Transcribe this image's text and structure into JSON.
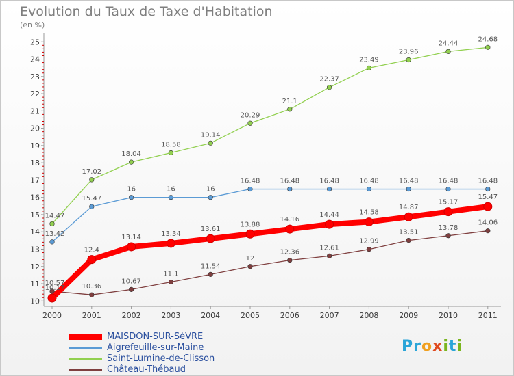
{
  "title": "Evolution du Taux de Taxe d'Habitation",
  "units": "(en %)",
  "brand": {
    "letters": [
      "P",
      "r",
      "o",
      "x",
      "i",
      "t",
      "i"
    ],
    "colors": [
      "#2aa5d8",
      "#2aa5d8",
      "#f0a020",
      "#e04a1e",
      "#7ab51d",
      "#2aa5d8",
      "#7ab51d"
    ]
  },
  "chart_data": {
    "type": "line",
    "x": [
      "2000",
      "2001",
      "2002",
      "2003",
      "2004",
      "2005",
      "2006",
      "2007",
      "2008",
      "2009",
      "2010",
      "2011"
    ],
    "ylim": [
      10,
      25
    ],
    "yticks": [
      10,
      11,
      12,
      13,
      14,
      15,
      16,
      17,
      18,
      19,
      20,
      21,
      22,
      23,
      24,
      25
    ],
    "grid": false,
    "legend_position": "bottom-left",
    "series": [
      {
        "name": "MAISDON-SUR-SèVRE",
        "color": "#ff0000",
        "values": [
          10.17,
          12.4,
          13.14,
          13.34,
          13.61,
          13.88,
          14.16,
          14.44,
          14.58,
          14.87,
          15.17,
          15.47
        ],
        "labels": [
          "10.17",
          "12.4",
          "13.14",
          "13.34",
          "13.61",
          "13.88",
          "14.16",
          "14.44",
          "14.58",
          "14.87",
          "15.17",
          "15.47"
        ]
      },
      {
        "name": "Aigrefeuille-sur-Maine",
        "color": "#5b9bd5",
        "values": [
          13.42,
          15.47,
          16,
          16,
          16,
          16.48,
          16.48,
          16.48,
          16.48,
          16.48,
          16.48,
          16.48
        ],
        "labels": [
          "13.42",
          "15.47",
          "16",
          "16",
          "16",
          "16.48",
          "16.48",
          "16.48",
          "16.48",
          "16.48",
          "16.48",
          "16.48"
        ]
      },
      {
        "name": "Saint-Lumine-de-Clisson",
        "color": "#92d050",
        "values": [
          14.47,
          17.02,
          18.04,
          18.58,
          19.14,
          20.29,
          21.1,
          22.37,
          23.49,
          23.96,
          24.44,
          24.68
        ],
        "labels": [
          "14.47",
          "17.02",
          "18.04",
          "18.58",
          "19.14",
          "20.29",
          "21.1",
          "22.37",
          "23.49",
          "23.96",
          "24.44",
          "24.68"
        ]
      },
      {
        "name": "Château-Thébaud",
        "color": "#7f3f3f",
        "values": [
          10.57,
          10.36,
          10.67,
          11.1,
          11.54,
          12,
          12.36,
          12.61,
          12.99,
          13.51,
          13.78,
          14.06
        ],
        "labels": [
          "10.57",
          "10.36",
          "10.67",
          "11.1",
          "11.54",
          "12",
          "12.36",
          "12.61",
          "12.99",
          "13.51",
          "13.78",
          "14.06"
        ]
      }
    ]
  }
}
